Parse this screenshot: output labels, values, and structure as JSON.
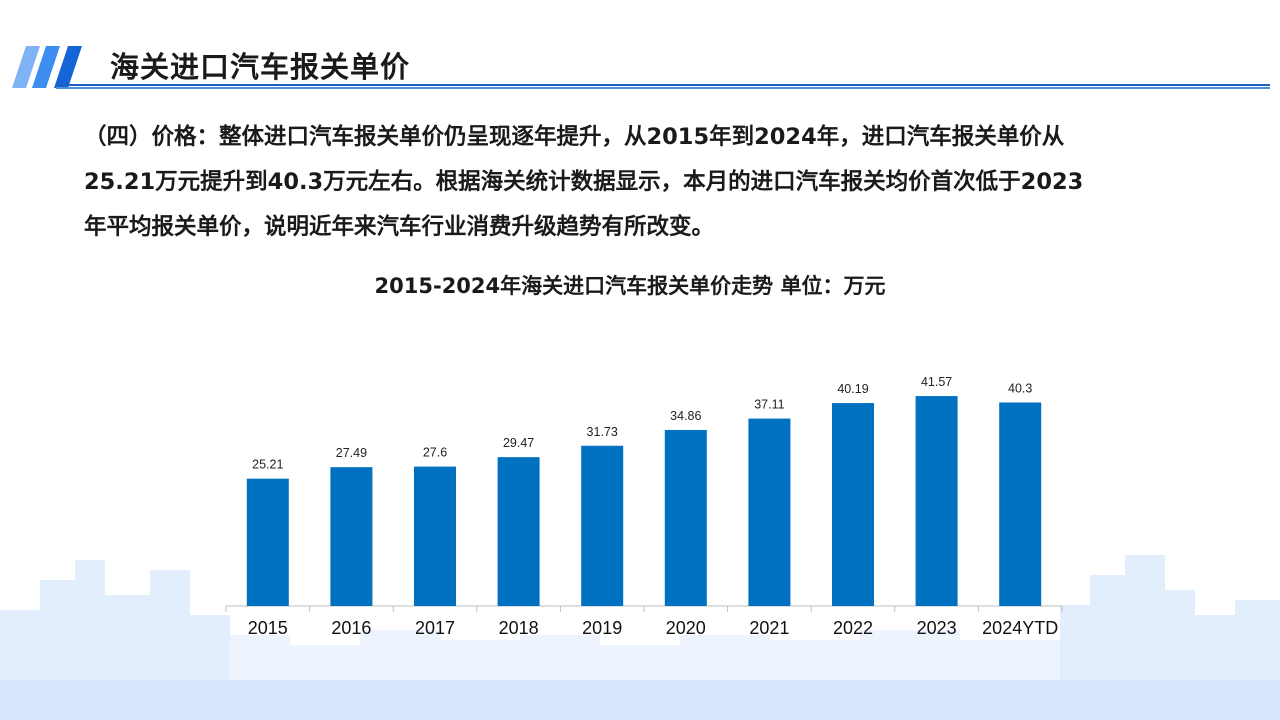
{
  "header": {
    "title": "海关进口汽车报关单价"
  },
  "body": {
    "line1": "（四）价格：整体进口汽车报关单价仍呈现逐年提升，从2015年到2024年，进口汽车报关单价从",
    "line2": "25.21万元提升到40.3万元左右。根据海关统计数据显示，本月的进口汽车报关均价首次低于2023",
    "line3": "年平均报关单价，说明近年来汽车行业消费升级趋势有所改变。"
  },
  "colors": {
    "accent": "#1a73e8",
    "bar": "#0070c0",
    "rule_dark": "#1f5fbf",
    "rule_light": "#4a90e2",
    "skyline": "#dce9fa"
  },
  "chart_data": {
    "type": "bar",
    "title": "2015-2024年海关进口汽车报关单价走势 单位：万元",
    "categories": [
      "2015",
      "2016",
      "2017",
      "2018",
      "2019",
      "2020",
      "2021",
      "2022",
      "2023",
      "2024YTD"
    ],
    "values": [
      25.21,
      27.49,
      27.6,
      29.47,
      31.73,
      34.86,
      37.11,
      40.19,
      41.57,
      40.3
    ],
    "data_labels": [
      "25.21",
      "27.49",
      "27.6",
      "29.47",
      "31.73",
      "34.86",
      "37.11",
      "40.19",
      "41.57",
      "40.3"
    ],
    "ylim": [
      0,
      45
    ],
    "grid": false,
    "legend": "none"
  }
}
